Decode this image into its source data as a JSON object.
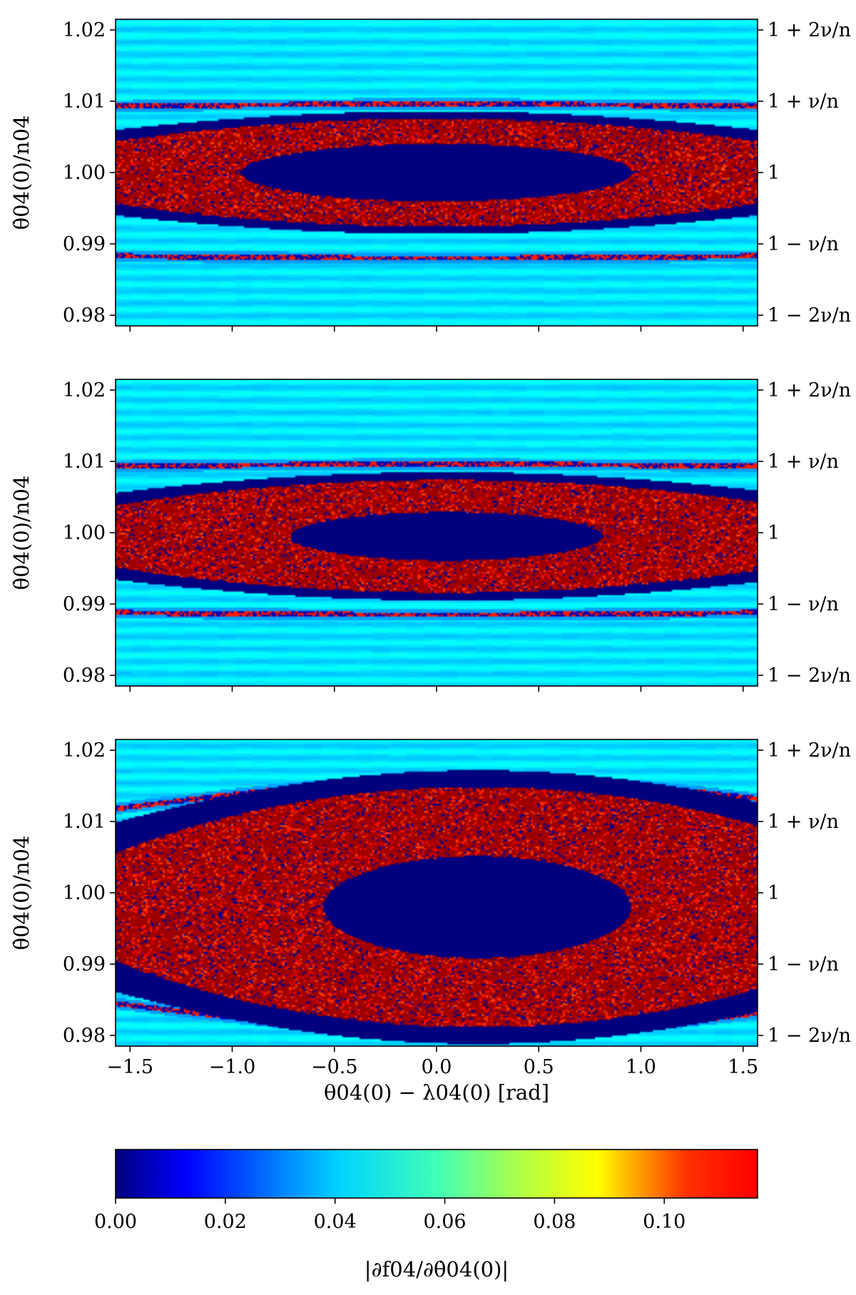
{
  "chart_data": {
    "type": "heatmap",
    "colormap": "jet",
    "x_label": "θ04(0) − λ04(0) [rad]",
    "y_label": "θ̇04(0)/n04",
    "x_range": [
      -1.5708,
      1.5708
    ],
    "y_range": [
      0.9785,
      1.0215
    ],
    "x_ticks": [
      "−1.5",
      "−1.0",
      "−0.5",
      "0.0",
      "0.5",
      "1.0",
      "1.5"
    ],
    "x_tick_values": [
      -1.5,
      -1.0,
      -0.5,
      0.0,
      0.5,
      1.0,
      1.5
    ],
    "y_ticks": [
      "0.98",
      "0.99",
      "1.00",
      "1.01",
      "1.02"
    ],
    "y_tick_values": [
      0.98,
      0.99,
      1.0,
      1.01,
      1.02
    ],
    "right_ticks": [
      {
        "value": 1.02,
        "label": "1 + 2ν/n"
      },
      {
        "value": 1.01,
        "label": "1 + ν/n"
      },
      {
        "value": 1.0,
        "label": "1"
      },
      {
        "value": 0.99,
        "label": "1 − ν/n"
      },
      {
        "value": 0.98,
        "label": "1 − 2ν/n"
      }
    ],
    "panels": [
      {
        "island_center_x": 0.0,
        "island_center_y": 1.0,
        "island_half_width_x": 1.1,
        "island_half_height_y": 0.0045,
        "chaos_half_height_y": 0.0065,
        "separatrix_y": [
          1.0093,
          0.9883
        ]
      },
      {
        "island_center_x": 0.05,
        "island_center_y": 0.9995,
        "island_half_width_x": 1.0,
        "island_half_height_y": 0.0038,
        "chaos_half_height_y": 0.0068,
        "separatrix_y": [
          1.0093,
          0.9888
        ]
      },
      {
        "island_center_x": 0.2,
        "island_center_y": 0.998,
        "island_half_width_x": 1.3,
        "island_half_height_y": 0.008,
        "chaos_half_height_y": 0.0145,
        "separatrix_y": [
          1.0125,
          0.9838
        ]
      }
    ],
    "colorbar": {
      "label": "|∂f04/∂θ̇04(0)|",
      "range": [
        0.0,
        0.117
      ],
      "ticks": [
        "0.00",
        "0.02",
        "0.04",
        "0.06",
        "0.08",
        "0.10"
      ],
      "tick_values": [
        0.0,
        0.02,
        0.04,
        0.06,
        0.08,
        0.1
      ]
    }
  }
}
